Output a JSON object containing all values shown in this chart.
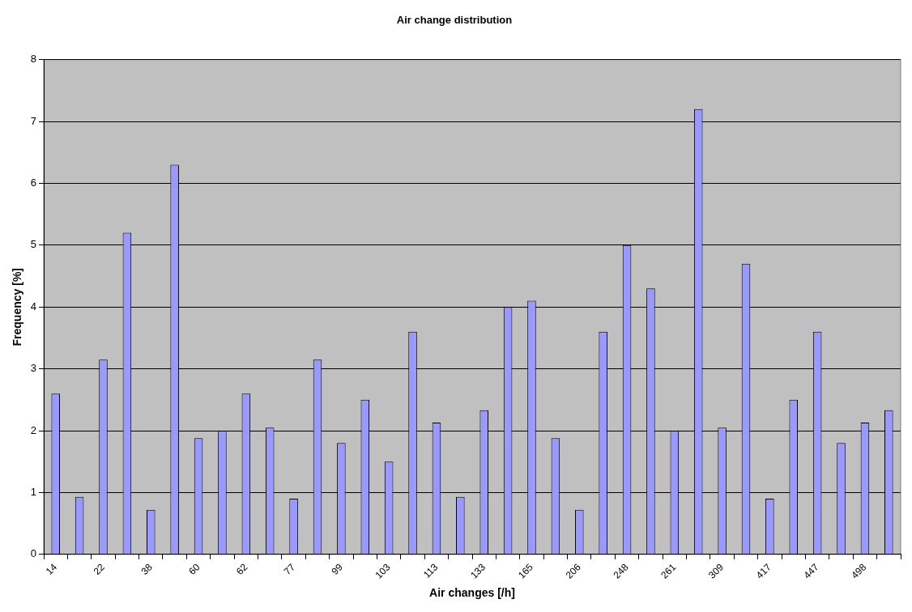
{
  "chart_data": {
    "type": "bar",
    "title": "Air change distribution",
    "xlabel": "Air changes [/h]",
    "ylabel": "Frequency [%]",
    "categories": [
      "14",
      null,
      "22",
      null,
      "38",
      null,
      "60",
      null,
      "62",
      null,
      "77",
      null,
      "99",
      null,
      "103",
      null,
      "113",
      null,
      "133",
      null,
      "165",
      null,
      "206",
      null,
      "248",
      null,
      "261",
      null,
      "309",
      null,
      "417",
      null,
      "447",
      null,
      "498",
      null
    ],
    "values": [
      2.6,
      0.93,
      3.15,
      5.2,
      0.72,
      6.3,
      1.88,
      2.0,
      2.6,
      2.05,
      0.9,
      3.15,
      1.8,
      2.5,
      1.5,
      3.6,
      2.13,
      0.93,
      2.33,
      4.0,
      4.1,
      1.88,
      0.72,
      3.6,
      5.0,
      4.3,
      2.0,
      7.2,
      2.05,
      4.7,
      0.9,
      2.5,
      3.6,
      1.8,
      2.13,
      2.33
    ],
    "color": "#9999ff",
    "ylim": [
      0,
      8
    ],
    "yticks": [
      0,
      1,
      2,
      3,
      4,
      5,
      6,
      7,
      8
    ],
    "grid": "y",
    "legend": false
  }
}
